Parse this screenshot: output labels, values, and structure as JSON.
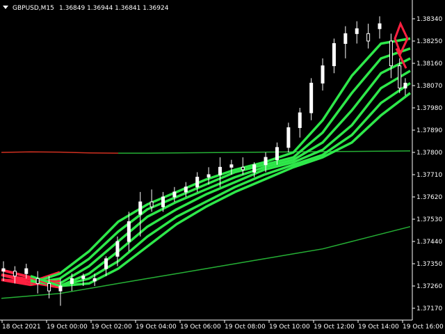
{
  "header": {
    "symbol": "GBPUSD,M15",
    "ohlc": "1.36849 1.36944 1.36841 1.36924"
  },
  "colors": {
    "background": "#000000",
    "candle_bull": "#ffffff",
    "candle_bear": "#ffffff",
    "ribbon_up": "#2ee84a",
    "ribbon_down": "#ff2040",
    "long_ma_up": "#25b035",
    "long_ma_down": "#d03020",
    "axis": "#ffffff"
  },
  "chart_data": {
    "type": "line",
    "title": "GBPUSD,M15",
    "y_ticks": [
      "1.38340",
      "1.38250",
      "1.38160",
      "1.38070",
      "1.37980",
      "1.37890",
      "1.37800",
      "1.37710",
      "1.37620",
      "1.37530",
      "1.37440",
      "1.37350",
      "1.37260",
      "1.37170"
    ],
    "x_ticks": [
      "18 Oct 2021",
      "19 Oct 00:00",
      "19 Oct 02:00",
      "19 Oct 04:00",
      "19 Oct 06:00",
      "19 Oct 08:00",
      "19 Oct 10:00",
      "19 Oct 12:00",
      "19 Oct 14:00",
      "19 Oct 16:00"
    ],
    "ylim": [
      1.3716,
      1.3838
    ],
    "bars_count": 143,
    "candles": [
      {
        "i": 0,
        "o": 1.3732,
        "h": 1.3736,
        "l": 1.3728,
        "c": 1.3733
      },
      {
        "i": 4,
        "o": 1.3732,
        "h": 1.3734,
        "l": 1.3727,
        "c": 1.373
      },
      {
        "i": 8,
        "o": 1.3731,
        "h": 1.3735,
        "l": 1.3729,
        "c": 1.3733
      },
      {
        "i": 12,
        "o": 1.3729,
        "h": 1.3732,
        "l": 1.3723,
        "c": 1.3727
      },
      {
        "i": 16,
        "o": 1.3727,
        "h": 1.373,
        "l": 1.3721,
        "c": 1.3724
      },
      {
        "i": 20,
        "o": 1.3724,
        "h": 1.3729,
        "l": 1.3718,
        "c": 1.3726
      },
      {
        "i": 24,
        "o": 1.3727,
        "h": 1.3731,
        "l": 1.3724,
        "c": 1.3729
      },
      {
        "i": 28,
        "o": 1.3729,
        "h": 1.3731,
        "l": 1.3726,
        "c": 1.373
      },
      {
        "i": 32,
        "o": 1.3728,
        "h": 1.3731,
        "l": 1.3726,
        "c": 1.3729
      },
      {
        "i": 36,
        "o": 1.3733,
        "h": 1.3738,
        "l": 1.373,
        "c": 1.3737
      },
      {
        "i": 40,
        "o": 1.3738,
        "h": 1.3746,
        "l": 1.3734,
        "c": 1.3744
      },
      {
        "i": 44,
        "o": 1.3744,
        "h": 1.3756,
        "l": 1.374,
        "c": 1.3752
      },
      {
        "i": 48,
        "o": 1.3755,
        "h": 1.3764,
        "l": 1.3746,
        "c": 1.376
      },
      {
        "i": 52,
        "o": 1.376,
        "h": 1.3765,
        "l": 1.3756,
        "c": 1.3758
      },
      {
        "i": 56,
        "o": 1.3758,
        "h": 1.3764,
        "l": 1.3756,
        "c": 1.3762
      },
      {
        "i": 60,
        "o": 1.3762,
        "h": 1.3766,
        "l": 1.376,
        "c": 1.3764
      },
      {
        "i": 64,
        "o": 1.3764,
        "h": 1.3768,
        "l": 1.3762,
        "c": 1.3766
      },
      {
        "i": 68,
        "o": 1.3766,
        "h": 1.3772,
        "l": 1.3764,
        "c": 1.377
      },
      {
        "i": 72,
        "o": 1.377,
        "h": 1.3774,
        "l": 1.3767,
        "c": 1.3771
      },
      {
        "i": 76,
        "o": 1.3771,
        "h": 1.3778,
        "l": 1.3766,
        "c": 1.3774
      },
      {
        "i": 80,
        "o": 1.3774,
        "h": 1.3777,
        "l": 1.3771,
        "c": 1.3775
      },
      {
        "i": 84,
        "o": 1.3774,
        "h": 1.3778,
        "l": 1.3771,
        "c": 1.3773
      },
      {
        "i": 88,
        "o": 1.3772,
        "h": 1.3776,
        "l": 1.377,
        "c": 1.3775
      },
      {
        "i": 92,
        "o": 1.3775,
        "h": 1.378,
        "l": 1.3772,
        "c": 1.3778
      },
      {
        "i": 96,
        "o": 1.3777,
        "h": 1.3784,
        "l": 1.3775,
        "c": 1.3782
      },
      {
        "i": 100,
        "o": 1.3782,
        "h": 1.3792,
        "l": 1.378,
        "c": 1.379
      },
      {
        "i": 104,
        "o": 1.379,
        "h": 1.3798,
        "l": 1.3786,
        "c": 1.3796
      },
      {
        "i": 108,
        "o": 1.3796,
        "h": 1.381,
        "l": 1.3793,
        "c": 1.3808
      },
      {
        "i": 112,
        "o": 1.3808,
        "h": 1.3818,
        "l": 1.3805,
        "c": 1.3815
      },
      {
        "i": 116,
        "o": 1.3815,
        "h": 1.3826,
        "l": 1.3812,
        "c": 1.3824
      },
      {
        "i": 120,
        "o": 1.3824,
        "h": 1.3831,
        "l": 1.3818,
        "c": 1.3828
      },
      {
        "i": 124,
        "o": 1.3828,
        "h": 1.3833,
        "l": 1.3824,
        "c": 1.383
      },
      {
        "i": 128,
        "o": 1.3828,
        "h": 1.3832,
        "l": 1.3822,
        "c": 1.3825
      },
      {
        "i": 132,
        "o": 1.383,
        "h": 1.3835,
        "l": 1.3826,
        "c": 1.3832
      },
      {
        "i": 136,
        "o": 1.3825,
        "h": 1.3828,
        "l": 1.381,
        "c": 1.3815
      },
      {
        "i": 139,
        "o": 1.3815,
        "h": 1.3818,
        "l": 1.3804,
        "c": 1.3806
      },
      {
        "i": 141,
        "o": 1.3806,
        "h": 1.381,
        "l": 1.3803,
        "c": 1.3808
      }
    ],
    "series": [
      {
        "values": [
          1.3728,
          1.3727,
          1.3731,
          1.374,
          1.3752,
          1.3759,
          1.3764,
          1.3769,
          1.3773,
          1.3776,
          1.378,
          1.3793,
          1.3811,
          1.3824,
          1.3826
        ]
      },
      {
        "values": [
          1.3729,
          1.3727,
          1.3729,
          1.3737,
          1.3748,
          1.3757,
          1.3762,
          1.3767,
          1.3772,
          1.3775,
          1.3778,
          1.3788,
          1.3804,
          1.3818,
          1.3822
        ]
      },
      {
        "values": [
          1.373,
          1.3728,
          1.3727,
          1.3734,
          1.3744,
          1.3754,
          1.376,
          1.3765,
          1.377,
          1.3774,
          1.3777,
          1.3784,
          1.3797,
          1.3812,
          1.3818
        ]
      },
      {
        "values": [
          1.3731,
          1.3728,
          1.3726,
          1.3731,
          1.374,
          1.375,
          1.3757,
          1.3763,
          1.3768,
          1.3773,
          1.3776,
          1.3781,
          1.3791,
          1.3806,
          1.3813
        ]
      },
      {
        "values": [
          1.3732,
          1.3729,
          1.3726,
          1.3729,
          1.3736,
          1.3746,
          1.3754,
          1.376,
          1.3766,
          1.3771,
          1.3775,
          1.3779,
          1.3787,
          1.38,
          1.3808
        ]
      },
      {
        "values": [
          1.3733,
          1.373,
          1.3726,
          1.3727,
          1.3733,
          1.3742,
          1.3751,
          1.3758,
          1.3764,
          1.3769,
          1.3774,
          1.3778,
          1.3784,
          1.3795,
          1.3804
        ]
      }
    ],
    "long_ma": {
      "values": [
        1.3721,
        1.3722,
        1.3723,
        1.3725,
        1.3727,
        1.3729,
        1.3731,
        1.3733,
        1.3735,
        1.3737,
        1.3739,
        1.3741,
        1.3744,
        1.3747,
        1.375
      ]
    },
    "flat_ma": {
      "values": [
        1.378,
        1.37802,
        1.37801,
        1.37798,
        1.37797,
        1.37797,
        1.37798,
        1.37799,
        1.378,
        1.37801,
        1.37802,
        1.37803,
        1.37804,
        1.37805,
        1.37806
      ]
    }
  }
}
